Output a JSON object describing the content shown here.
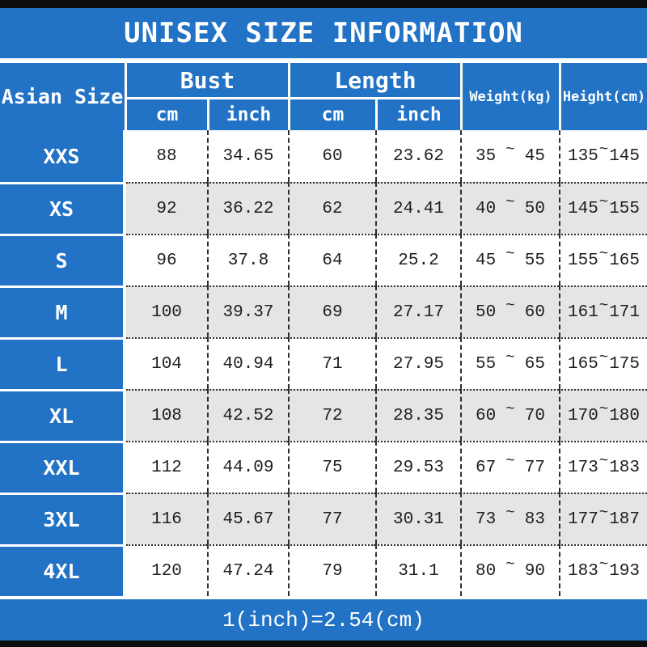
{
  "title": "UNISEX SIZE INFORMATION",
  "footer_note": "1(inch)=2.54(cm)",
  "range_separator": "~",
  "table": {
    "size_col_header": "Asian Size",
    "bust_group": {
      "label": "Bust",
      "sub": [
        "cm",
        "inch"
      ]
    },
    "length_group": {
      "label": "Length",
      "sub": [
        "cm",
        "inch"
      ]
    },
    "weight_header": "Weight(kg)",
    "height_header": "Height(cm)",
    "rows": [
      {
        "size": "XXS",
        "bust_cm": "88",
        "bust_inch": "34.65",
        "length_cm": "60",
        "length_inch": "23.62",
        "weight_min": "35",
        "weight_max": "45",
        "height_min": "135",
        "height_max": "145"
      },
      {
        "size": "XS",
        "bust_cm": "92",
        "bust_inch": "36.22",
        "length_cm": "62",
        "length_inch": "24.41",
        "weight_min": "40",
        "weight_max": "50",
        "height_min": "145",
        "height_max": "155"
      },
      {
        "size": "S",
        "bust_cm": "96",
        "bust_inch": "37.8",
        "length_cm": "64",
        "length_inch": "25.2",
        "weight_min": "45",
        "weight_max": "55",
        "height_min": "155",
        "height_max": "165"
      },
      {
        "size": "M",
        "bust_cm": "100",
        "bust_inch": "39.37",
        "length_cm": "69",
        "length_inch": "27.17",
        "weight_min": "50",
        "weight_max": "60",
        "height_min": "161",
        "height_max": "171"
      },
      {
        "size": "L",
        "bust_cm": "104",
        "bust_inch": "40.94",
        "length_cm": "71",
        "length_inch": "27.95",
        "weight_min": "55",
        "weight_max": "65",
        "height_min": "165",
        "height_max": "175"
      },
      {
        "size": "XL",
        "bust_cm": "108",
        "bust_inch": "42.52",
        "length_cm": "72",
        "length_inch": "28.35",
        "weight_min": "60",
        "weight_max": "70",
        "height_min": "170",
        "height_max": "180"
      },
      {
        "size": "XXL",
        "bust_cm": "112",
        "bust_inch": "44.09",
        "length_cm": "75",
        "length_inch": "29.53",
        "weight_min": "67",
        "weight_max": "77",
        "height_min": "173",
        "height_max": "183"
      },
      {
        "size": "3XL",
        "bust_cm": "116",
        "bust_inch": "45.67",
        "length_cm": "77",
        "length_inch": "30.31",
        "weight_min": "73",
        "weight_max": "83",
        "height_min": "177",
        "height_max": "187"
      },
      {
        "size": "4XL",
        "bust_cm": "120",
        "bust_inch": "47.24",
        "length_cm": "79",
        "length_inch": "31.1",
        "weight_min": "80",
        "weight_max": "90",
        "height_min": "183",
        "height_max": "193"
      }
    ]
  },
  "chart_data": {
    "type": "table",
    "title": "UNISEX SIZE INFORMATION",
    "columns": [
      "Asian Size",
      "Bust cm",
      "Bust inch",
      "Length cm",
      "Length inch",
      "Weight(kg)",
      "Height(cm)"
    ],
    "rows": [
      [
        "XXS",
        88,
        34.65,
        60,
        23.62,
        "35~45",
        "135~145"
      ],
      [
        "XS",
        92,
        36.22,
        62,
        24.41,
        "40~50",
        "145~155"
      ],
      [
        "S",
        96,
        37.8,
        64,
        25.2,
        "45~55",
        "155~165"
      ],
      [
        "M",
        100,
        39.37,
        69,
        27.17,
        "50~60",
        "161~171"
      ],
      [
        "L",
        104,
        40.94,
        71,
        27.95,
        "55~65",
        "165~175"
      ],
      [
        "XL",
        108,
        42.52,
        72,
        28.35,
        "60~70",
        "170~180"
      ],
      [
        "XXL",
        112,
        44.09,
        75,
        29.53,
        "67~77",
        "173~183"
      ],
      [
        "3XL",
        116,
        45.67,
        77,
        30.31,
        "73~83",
        "177~187"
      ],
      [
        "4XL",
        120,
        47.24,
        79,
        31.1,
        "80~90",
        "183~193"
      ]
    ],
    "footnote": "1(inch)=2.54(cm)"
  },
  "colors": {
    "blue": "#2273c5",
    "row_alt": "#e6e4e5",
    "border_dark": "#2e2e2e",
    "bar_black": "#0d0d0d",
    "text_data": "#1e1e1e"
  }
}
